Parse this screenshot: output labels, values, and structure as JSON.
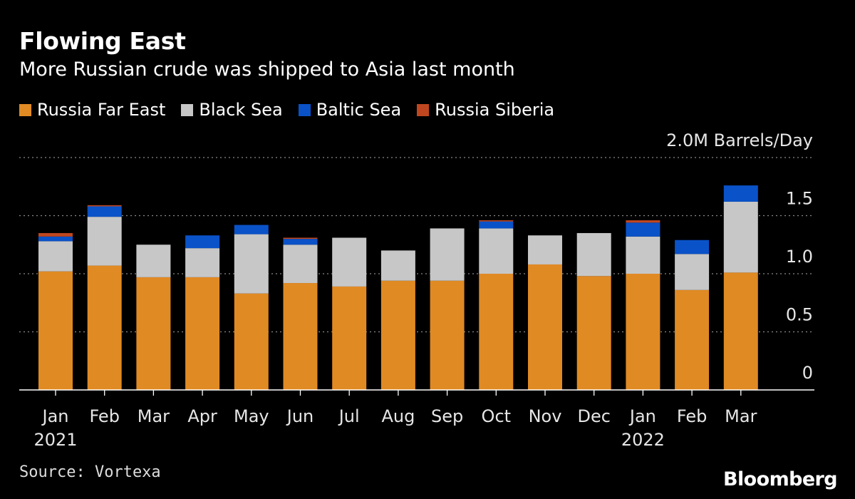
{
  "header": {
    "title": "Flowing East",
    "subtitle": "More Russian crude was shipped to Asia last month"
  },
  "footer": {
    "source": "Source: Vortexa",
    "brand": "Bloomberg"
  },
  "chart_data": {
    "type": "bar",
    "stacked": true,
    "title": "Flowing East",
    "subtitle": "More Russian crude was shipped to Asia last month",
    "unit_label": "2.0M Barrels/Day",
    "ylim": [
      0,
      2.0
    ],
    "yticks": [
      {
        "value": 0,
        "label": "0"
      },
      {
        "value": 0.5,
        "label": "0.5"
      },
      {
        "value": 1.0,
        "label": "1.0"
      },
      {
        "value": 1.5,
        "label": "1.5"
      }
    ],
    "grid": true,
    "legend_position": "top-left",
    "categories": [
      "Jan",
      "Feb",
      "Mar",
      "Apr",
      "May",
      "Jun",
      "Jul",
      "Aug",
      "Sep",
      "Oct",
      "Nov",
      "Dec",
      "Jan",
      "Feb",
      "Mar"
    ],
    "year_labels": [
      {
        "index": 0,
        "label": "2021"
      },
      {
        "index": 12,
        "label": "2022"
      }
    ],
    "series": [
      {
        "name": "Russia Far East",
        "color": "#e08a24",
        "values": [
          1.02,
          1.07,
          0.97,
          0.97,
          0.83,
          0.92,
          0.89,
          0.94,
          0.94,
          1.0,
          1.08,
          0.98,
          1.0,
          0.86,
          1.01
        ]
      },
      {
        "name": "Black Sea",
        "color": "#c7c7c7",
        "values": [
          0.26,
          0.42,
          0.28,
          0.25,
          0.51,
          0.33,
          0.42,
          0.26,
          0.45,
          0.39,
          0.25,
          0.37,
          0.32,
          0.31,
          0.61
        ]
      },
      {
        "name": "Baltic Sea",
        "color": "#0a52c8",
        "values": [
          0.04,
          0.09,
          0.0,
          0.11,
          0.08,
          0.05,
          0.0,
          0.0,
          0.0,
          0.06,
          0.0,
          0.0,
          0.12,
          0.12,
          0.14
        ]
      },
      {
        "name": "Russia Siberia",
        "color": "#c0461f",
        "values": [
          0.03,
          0.01,
          0.0,
          0.0,
          0.0,
          0.01,
          0.0,
          0.0,
          0.0,
          0.01,
          0.0,
          0.0,
          0.02,
          0.0,
          0.0
        ]
      }
    ]
  }
}
